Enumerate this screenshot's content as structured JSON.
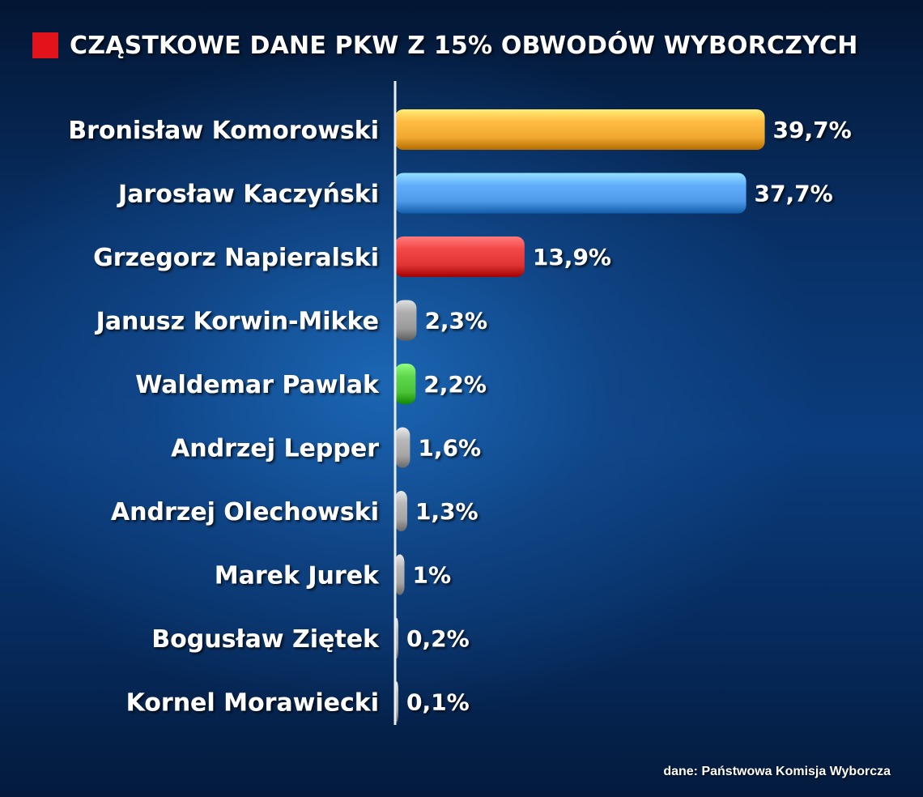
{
  "header": {
    "title": "CZĄSTKOWE DANE PKW Z 15% OBWODÓW WYBORCZYCH",
    "marker_color": "#e3131b"
  },
  "source": "dane: Państwowa Komisja Wyborcza",
  "chart_data": {
    "type": "bar",
    "orientation": "horizontal",
    "title": "CZĄSTKOWE DANE PKW Z 15% OBWODÓW WYBORCZYCH",
    "categories": [
      "Bronisław Komorowski",
      "Jarosław Kaczyński",
      "Grzegorz Napieralski",
      "Janusz Korwin-Mikke",
      "Waldemar Pawlak",
      "Andrzej Lepper",
      "Andrzej Olechowski",
      "Marek Jurek",
      "Bogusław Ziętek",
      "Kornel Morawiecki"
    ],
    "values": [
      39.7,
      37.7,
      13.9,
      2.3,
      2.2,
      1.6,
      1.3,
      1.0,
      0.2,
      0.1
    ],
    "value_labels": [
      "39,7%",
      "37,7%",
      "13,9%",
      "2,3%",
      "2,2%",
      "1,6%",
      "1,3%",
      "1%",
      "0,2%",
      "0,1%"
    ],
    "colors": [
      "#f0a830",
      "#4f9ae8",
      "#e03535",
      "#9a9a9a",
      "#4cc43a",
      "#a5a5a5",
      "#a5a5a5",
      "#a5a5a5",
      "#a5a5a5",
      "#a5a5a5"
    ],
    "xlim": [
      0,
      40
    ],
    "grid": false,
    "legend": "none",
    "xlabel": "",
    "ylabel": ""
  }
}
